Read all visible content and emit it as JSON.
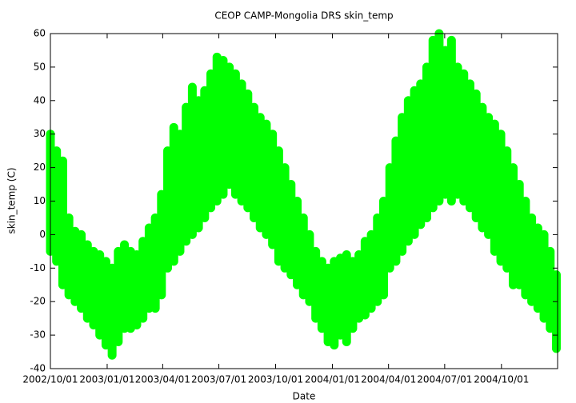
{
  "chart_data": {
    "type": "range-scatter",
    "title": "CEOP CAMP-Mongolia DRS  skin_temp",
    "x_label": "Date",
    "y_label": "skin_temp (C)",
    "color": "#00ff00",
    "xlim": [
      "2002/10/01",
      "2004/12/31"
    ],
    "xticks": [
      "2002/10/01",
      "2003/01/01",
      "2003/04/01",
      "2003/07/01",
      "2003/10/01",
      "2004/01/01",
      "2004/04/01",
      "2004/07/01",
      "2004/10/01"
    ],
    "ylim": [
      -40,
      60
    ],
    "yticks": [
      -40,
      -30,
      -20,
      -10,
      0,
      10,
      20,
      30,
      40,
      50,
      60
    ],
    "x": [
      "2002/10/01",
      "2002/10/11",
      "2002/10/21",
      "2002/10/31",
      "2002/11/10",
      "2002/11/20",
      "2002/11/30",
      "2002/12/10",
      "2002/12/20",
      "2002/12/30",
      "2003/01/09",
      "2003/01/19",
      "2003/01/29",
      "2003/02/08",
      "2003/02/18",
      "2003/02/28",
      "2003/03/10",
      "2003/03/20",
      "2003/03/30",
      "2003/04/09",
      "2003/04/19",
      "2003/04/29",
      "2003/05/09",
      "2003/05/19",
      "2003/05/29",
      "2003/06/08",
      "2003/06/18",
      "2003/06/28",
      "2003/07/08",
      "2003/07/18",
      "2003/07/28",
      "2003/08/07",
      "2003/08/17",
      "2003/08/27",
      "2003/09/06",
      "2003/09/16",
      "2003/09/26",
      "2003/10/06",
      "2003/10/16",
      "2003/10/26",
      "2003/11/05",
      "2003/11/15",
      "2003/11/25",
      "2003/12/05",
      "2003/12/15",
      "2003/12/25",
      "2004/01/04",
      "2004/01/14",
      "2004/01/24",
      "2004/02/03",
      "2004/02/13",
      "2004/02/23",
      "2004/03/04",
      "2004/03/14",
      "2004/03/24",
      "2004/04/03",
      "2004/04/13",
      "2004/04/23",
      "2004/05/03",
      "2004/05/13",
      "2004/05/23",
      "2004/06/02",
      "2004/06/12",
      "2004/06/22",
      "2004/07/02",
      "2004/07/12",
      "2004/07/22",
      "2004/08/01",
      "2004/08/11",
      "2004/08/21",
      "2004/08/31",
      "2004/09/10",
      "2004/09/20",
      "2004/09/30",
      "2004/10/10",
      "2004/10/20",
      "2004/10/30",
      "2004/11/09",
      "2004/11/19",
      "2004/11/29",
      "2004/12/09",
      "2004/12/19",
      "2004/12/29"
    ],
    "high": [
      30,
      25,
      22,
      5,
      1,
      0,
      -3,
      -5,
      -6,
      -8,
      -10,
      -5,
      -3,
      -5,
      -6,
      -2,
      2,
      5,
      12,
      25,
      32,
      30,
      38,
      44,
      40,
      43,
      48,
      53,
      52,
      50,
      48,
      45,
      42,
      38,
      35,
      33,
      30,
      25,
      20,
      15,
      10,
      5,
      0,
      -5,
      -8,
      -10,
      -8,
      -7,
      -6,
      -8,
      -6,
      -2,
      0,
      5,
      10,
      20,
      28,
      35,
      40,
      43,
      45,
      50,
      58,
      60,
      55,
      58,
      50,
      48,
      45,
      42,
      38,
      35,
      33,
      30,
      25,
      20,
      15,
      10,
      5,
      2,
      0,
      -5,
      -12
    ],
    "low": [
      -5,
      -8,
      -15,
      -18,
      -20,
      -22,
      -25,
      -27,
      -30,
      -33,
      -36,
      -32,
      -28,
      -28,
      -27,
      -25,
      -22,
      -22,
      -18,
      -10,
      -8,
      -5,
      -2,
      0,
      2,
      5,
      8,
      10,
      12,
      15,
      12,
      10,
      8,
      5,
      2,
      0,
      -3,
      -8,
      -10,
      -12,
      -15,
      -18,
      -20,
      -25,
      -28,
      -32,
      -33,
      -30,
      -32,
      -28,
      -25,
      -24,
      -22,
      -20,
      -18,
      -10,
      -8,
      -5,
      -2,
      0,
      3,
      5,
      8,
      10,
      12,
      10,
      12,
      10,
      8,
      5,
      2,
      0,
      -5,
      -8,
      -10,
      -15,
      -15,
      -18,
      -20,
      -22,
      -25,
      -28,
      -34
    ]
  }
}
